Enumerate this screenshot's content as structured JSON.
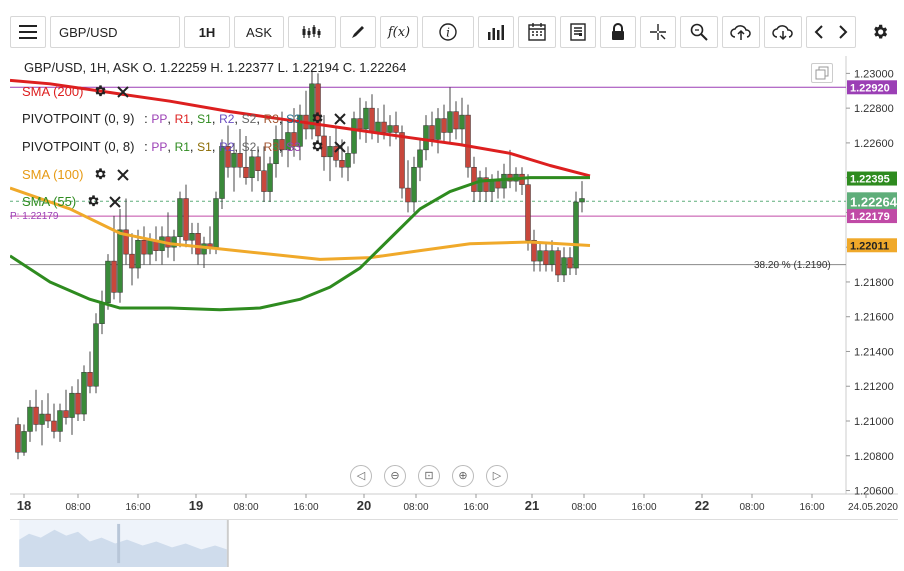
{
  "toolbar": {
    "symbol": "GBP/USD",
    "timeframe": "1H",
    "price_type": "ASK"
  },
  "header": {
    "ohlc": "GBP/USD, 1H, ASK   O. 1.22259 H. 1.22377 L. 1.22194 C. 1.22264"
  },
  "legends": {
    "sma200": "SMA (200)",
    "pivot1_name": "PIVOTPOINT (0, 9)",
    "pivot1_levels": [
      "PP",
      "R1",
      "S1",
      "R2",
      "S2",
      "R3",
      "S3"
    ],
    "pivot2_name": "PIVOTPOINT (0, 8)",
    "pivot2_levels": [
      "PP",
      "R1",
      "S1",
      "R2",
      "S2",
      "R3",
      "S3"
    ],
    "sma100": "SMA (100)",
    "sma55": "SMA (55)",
    "pivot_tag": "P: 1.22179"
  },
  "fib_label": "38.20 % (1.2190)",
  "price_badges": {
    "p1": "1.22920",
    "p2": "1.22395",
    "p3": "1.22264",
    "p4": "1.22179",
    "p5": "1.22011"
  },
  "colors": {
    "sma200": "#dd1f1f",
    "sma100": "#f0a92a",
    "sma55": "#2e8b1f",
    "pivot": "#9b3fb5",
    "up": "#3a8a3a",
    "down": "#c8473c"
  },
  "chart_data": {
    "type": "line",
    "y_ticks": [
      "1.23000",
      "1.22800",
      "1.22600",
      "1.22400",
      "1.22200",
      "1.22000",
      "1.21800",
      "1.21600",
      "1.21400",
      "1.21200",
      "1.21000",
      "1.20800",
      "1.20600"
    ],
    "x_labels": [
      "18",
      "08:00",
      "16:00",
      "19",
      "08:00",
      "16:00",
      "20",
      "08:00",
      "16:00",
      "21",
      "08:00",
      "16:00",
      "22",
      "08:00",
      "16:00",
      "24.05.2020"
    ],
    "ylim": [
      1.2058,
      1.231
    ],
    "series": [
      {
        "name": "SMA (200)",
        "values": [
          [
            0,
            1.2296
          ],
          [
            40,
            1.2294
          ],
          [
            100,
            1.2289
          ],
          [
            160,
            1.2284
          ],
          [
            220,
            1.2278
          ],
          [
            280,
            1.2273
          ],
          [
            340,
            1.2268
          ],
          [
            400,
            1.2263
          ],
          [
            450,
            1.2259
          ],
          [
            500,
            1.2254
          ],
          [
            540,
            1.2247
          ],
          [
            580,
            1.2241
          ]
        ]
      },
      {
        "name": "SMA (100)",
        "values": [
          [
            0,
            1.2234
          ],
          [
            60,
            1.2222
          ],
          [
            110,
            1.2208
          ],
          [
            160,
            1.2202
          ],
          [
            210,
            1.2199
          ],
          [
            260,
            1.2196
          ],
          [
            310,
            1.2193
          ],
          [
            360,
            1.2194
          ],
          [
            410,
            1.2198
          ],
          [
            460,
            1.2202
          ],
          [
            520,
            1.2203
          ],
          [
            580,
            1.2201
          ]
        ]
      },
      {
        "name": "SMA (55)",
        "values": [
          [
            0,
            1.2195
          ],
          [
            40,
            1.218
          ],
          [
            80,
            1.217
          ],
          [
            110,
            1.2165
          ],
          [
            160,
            1.2165
          ],
          [
            210,
            1.2164
          ],
          [
            250,
            1.2165
          ],
          [
            290,
            1.217
          ],
          [
            320,
            1.2177
          ],
          [
            350,
            1.2188
          ],
          [
            380,
            1.2205
          ],
          [
            410,
            1.2222
          ],
          [
            440,
            1.2232
          ],
          [
            470,
            1.2238
          ],
          [
            520,
            1.224
          ],
          [
            580,
            1.224
          ]
        ]
      }
    ],
    "horizontal_levels": [
      {
        "name": "pivot",
        "value": 1.2292
      },
      {
        "name": "pivot_p",
        "value": 1.22179
      },
      {
        "name": "fib",
        "value": 1.219
      },
      {
        "name": "last",
        "value": 1.22264
      }
    ],
    "candles": [
      {
        "t": 8,
        "o": 1.2098,
        "h": 1.2102,
        "l": 1.2078,
        "c": 1.2082
      },
      {
        "t": 14,
        "o": 1.2082,
        "h": 1.2098,
        "l": 1.208,
        "c": 1.2094
      },
      {
        "t": 20,
        "o": 1.2094,
        "h": 1.2112,
        "l": 1.2088,
        "c": 1.2108
      },
      {
        "t": 26,
        "o": 1.2108,
        "h": 1.2118,
        "l": 1.2094,
        "c": 1.2098
      },
      {
        "t": 32,
        "o": 1.2098,
        "h": 1.2112,
        "l": 1.2086,
        "c": 1.2104
      },
      {
        "t": 38,
        "o": 1.2104,
        "h": 1.2116,
        "l": 1.2096,
        "c": 1.21
      },
      {
        "t": 44,
        "o": 1.21,
        "h": 1.211,
        "l": 1.209,
        "c": 1.2094
      },
      {
        "t": 50,
        "o": 1.2094,
        "h": 1.211,
        "l": 1.2088,
        "c": 1.2106
      },
      {
        "t": 56,
        "o": 1.2106,
        "h": 1.2118,
        "l": 1.2098,
        "c": 1.2102
      },
      {
        "t": 62,
        "o": 1.2102,
        "h": 1.212,
        "l": 1.2092,
        "c": 1.2116
      },
      {
        "t": 68,
        "o": 1.2116,
        "h": 1.2124,
        "l": 1.21,
        "c": 1.2104
      },
      {
        "t": 74,
        "o": 1.2104,
        "h": 1.2132,
        "l": 1.21,
        "c": 1.2128
      },
      {
        "t": 80,
        "o": 1.2128,
        "h": 1.214,
        "l": 1.2116,
        "c": 1.212
      },
      {
        "t": 86,
        "o": 1.212,
        "h": 1.2162,
        "l": 1.2116,
        "c": 1.2156
      },
      {
        "t": 92,
        "o": 1.2156,
        "h": 1.2175,
        "l": 1.215,
        "c": 1.2168
      },
      {
        "t": 98,
        "o": 1.2168,
        "h": 1.2196,
        "l": 1.2164,
        "c": 1.2192
      },
      {
        "t": 104,
        "o": 1.2192,
        "h": 1.2218,
        "l": 1.217,
        "c": 1.2174
      },
      {
        "t": 110,
        "o": 1.2174,
        "h": 1.2222,
        "l": 1.2168,
        "c": 1.221
      },
      {
        "t": 116,
        "o": 1.221,
        "h": 1.2228,
        "l": 1.219,
        "c": 1.2196
      },
      {
        "t": 122,
        "o": 1.2196,
        "h": 1.2208,
        "l": 1.2178,
        "c": 1.2188
      },
      {
        "t": 128,
        "o": 1.2188,
        "h": 1.221,
        "l": 1.2182,
        "c": 1.2204
      },
      {
        "t": 134,
        "o": 1.2204,
        "h": 1.2212,
        "l": 1.219,
        "c": 1.2196
      },
      {
        "t": 140,
        "o": 1.2196,
        "h": 1.2208,
        "l": 1.219,
        "c": 1.2204
      },
      {
        "t": 146,
        "o": 1.2204,
        "h": 1.2212,
        "l": 1.2192,
        "c": 1.2198
      },
      {
        "t": 152,
        "o": 1.2198,
        "h": 1.2212,
        "l": 1.219,
        "c": 1.2206
      },
      {
        "t": 158,
        "o": 1.2206,
        "h": 1.222,
        "l": 1.2194,
        "c": 1.22
      },
      {
        "t": 164,
        "o": 1.22,
        "h": 1.221,
        "l": 1.2192,
        "c": 1.2206
      },
      {
        "t": 170,
        "o": 1.2206,
        "h": 1.2232,
        "l": 1.22,
        "c": 1.2228
      },
      {
        "t": 176,
        "o": 1.2228,
        "h": 1.2236,
        "l": 1.22,
        "c": 1.2204
      },
      {
        "t": 182,
        "o": 1.2204,
        "h": 1.2214,
        "l": 1.2196,
        "c": 1.2208
      },
      {
        "t": 188,
        "o": 1.2208,
        "h": 1.2214,
        "l": 1.219,
        "c": 1.2196
      },
      {
        "t": 194,
        "o": 1.2196,
        "h": 1.2206,
        "l": 1.2188,
        "c": 1.2202
      },
      {
        "t": 200,
        "o": 1.2202,
        "h": 1.2212,
        "l": 1.2196,
        "c": 1.22
      },
      {
        "t": 206,
        "o": 1.22,
        "h": 1.2232,
        "l": 1.2196,
        "c": 1.2228
      },
      {
        "t": 212,
        "o": 1.2228,
        "h": 1.2262,
        "l": 1.2222,
        "c": 1.2258
      },
      {
        "t": 218,
        "o": 1.2258,
        "h": 1.227,
        "l": 1.224,
        "c": 1.2246
      },
      {
        "t": 224,
        "o": 1.2246,
        "h": 1.226,
        "l": 1.2232,
        "c": 1.2254
      },
      {
        "t": 230,
        "o": 1.2254,
        "h": 1.2268,
        "l": 1.224,
        "c": 1.2246
      },
      {
        "t": 236,
        "o": 1.2246,
        "h": 1.2264,
        "l": 1.2236,
        "c": 1.224
      },
      {
        "t": 242,
        "o": 1.224,
        "h": 1.2256,
        "l": 1.2232,
        "c": 1.2252
      },
      {
        "t": 248,
        "o": 1.2252,
        "h": 1.2258,
        "l": 1.2238,
        "c": 1.2244
      },
      {
        "t": 254,
        "o": 1.2244,
        "h": 1.2258,
        "l": 1.2226,
        "c": 1.2232
      },
      {
        "t": 260,
        "o": 1.2232,
        "h": 1.2252,
        "l": 1.2226,
        "c": 1.2248
      },
      {
        "t": 266,
        "o": 1.2248,
        "h": 1.227,
        "l": 1.224,
        "c": 1.2262
      },
      {
        "t": 272,
        "o": 1.2262,
        "h": 1.2278,
        "l": 1.2252,
        "c": 1.2256
      },
      {
        "t": 278,
        "o": 1.2256,
        "h": 1.2274,
        "l": 1.2246,
        "c": 1.2266
      },
      {
        "t": 284,
        "o": 1.2266,
        "h": 1.228,
        "l": 1.2252,
        "c": 1.2258
      },
      {
        "t": 290,
        "o": 1.2258,
        "h": 1.2282,
        "l": 1.225,
        "c": 1.2276
      },
      {
        "t": 296,
        "o": 1.2276,
        "h": 1.229,
        "l": 1.2262,
        "c": 1.2268
      },
      {
        "t": 302,
        "o": 1.2268,
        "h": 1.2302,
        "l": 1.2262,
        "c": 1.2294
      },
      {
        "t": 308,
        "o": 1.2294,
        "h": 1.23,
        "l": 1.226,
        "c": 1.2264
      },
      {
        "t": 314,
        "o": 1.2264,
        "h": 1.2276,
        "l": 1.2244,
        "c": 1.2252
      },
      {
        "t": 320,
        "o": 1.2252,
        "h": 1.2264,
        "l": 1.2238,
        "c": 1.2258
      },
      {
        "t": 326,
        "o": 1.2258,
        "h": 1.227,
        "l": 1.2246,
        "c": 1.225
      },
      {
        "t": 332,
        "o": 1.225,
        "h": 1.2262,
        "l": 1.224,
        "c": 1.2246
      },
      {
        "t": 338,
        "o": 1.2246,
        "h": 1.2258,
        "l": 1.2238,
        "c": 1.2254
      },
      {
        "t": 344,
        "o": 1.2254,
        "h": 1.2278,
        "l": 1.2248,
        "c": 1.2274
      },
      {
        "t": 350,
        "o": 1.2274,
        "h": 1.2286,
        "l": 1.2262,
        "c": 1.2268
      },
      {
        "t": 356,
        "o": 1.2268,
        "h": 1.2284,
        "l": 1.226,
        "c": 1.228
      },
      {
        "t": 362,
        "o": 1.228,
        "h": 1.2288,
        "l": 1.2262,
        "c": 1.2266
      },
      {
        "t": 368,
        "o": 1.2266,
        "h": 1.228,
        "l": 1.226,
        "c": 1.2272
      },
      {
        "t": 374,
        "o": 1.2272,
        "h": 1.2282,
        "l": 1.2262,
        "c": 1.2266
      },
      {
        "t": 380,
        "o": 1.2266,
        "h": 1.2276,
        "l": 1.2258,
        "c": 1.227
      },
      {
        "t": 386,
        "o": 1.227,
        "h": 1.2278,
        "l": 1.2262,
        "c": 1.2266
      },
      {
        "t": 392,
        "o": 1.2266,
        "h": 1.227,
        "l": 1.2228,
        "c": 1.2234
      },
      {
        "t": 398,
        "o": 1.2234,
        "h": 1.225,
        "l": 1.222,
        "c": 1.2226
      },
      {
        "t": 404,
        "o": 1.2226,
        "h": 1.2252,
        "l": 1.222,
        "c": 1.2246
      },
      {
        "t": 410,
        "o": 1.2246,
        "h": 1.2262,
        "l": 1.2238,
        "c": 1.2256
      },
      {
        "t": 416,
        "o": 1.2256,
        "h": 1.2276,
        "l": 1.225,
        "c": 1.227
      },
      {
        "t": 422,
        "o": 1.227,
        "h": 1.2278,
        "l": 1.2258,
        "c": 1.2262
      },
      {
        "t": 428,
        "o": 1.2262,
        "h": 1.228,
        "l": 1.2254,
        "c": 1.2274
      },
      {
        "t": 434,
        "o": 1.2274,
        "h": 1.2282,
        "l": 1.226,
        "c": 1.2266
      },
      {
        "t": 440,
        "o": 1.2266,
        "h": 1.2292,
        "l": 1.226,
        "c": 1.2278
      },
      {
        "t": 446,
        "o": 1.2278,
        "h": 1.2284,
        "l": 1.2262,
        "c": 1.2268
      },
      {
        "t": 452,
        "o": 1.2268,
        "h": 1.2286,
        "l": 1.2258,
        "c": 1.2276
      },
      {
        "t": 458,
        "o": 1.2276,
        "h": 1.2282,
        "l": 1.224,
        "c": 1.2246
      },
      {
        "t": 464,
        "o": 1.2246,
        "h": 1.2252,
        "l": 1.2226,
        "c": 1.2232
      },
      {
        "t": 470,
        "o": 1.2232,
        "h": 1.2244,
        "l": 1.2226,
        "c": 1.224
      },
      {
        "t": 476,
        "o": 1.224,
        "h": 1.2246,
        "l": 1.2226,
        "c": 1.2232
      },
      {
        "t": 482,
        "o": 1.2232,
        "h": 1.2242,
        "l": 1.2226,
        "c": 1.2238
      },
      {
        "t": 488,
        "o": 1.2238,
        "h": 1.2244,
        "l": 1.2228,
        "c": 1.2234
      },
      {
        "t": 494,
        "o": 1.2234,
        "h": 1.2248,
        "l": 1.2228,
        "c": 1.2242
      },
      {
        "t": 500,
        "o": 1.2242,
        "h": 1.2256,
        "l": 1.2234,
        "c": 1.2238
      },
      {
        "t": 506,
        "o": 1.2238,
        "h": 1.2246,
        "l": 1.2232,
        "c": 1.2242
      },
      {
        "t": 512,
        "o": 1.2242,
        "h": 1.2246,
        "l": 1.223,
        "c": 1.2236
      },
      {
        "t": 518,
        "o": 1.2236,
        "h": 1.2242,
        "l": 1.2198,
        "c": 1.2204
      },
      {
        "t": 524,
        "o": 1.2204,
        "h": 1.221,
        "l": 1.2186,
        "c": 1.2192
      },
      {
        "t": 530,
        "o": 1.2192,
        "h": 1.2202,
        "l": 1.2186,
        "c": 1.2198
      },
      {
        "t": 536,
        "o": 1.2198,
        "h": 1.2202,
        "l": 1.2186,
        "c": 1.219
      },
      {
        "t": 542,
        "o": 1.219,
        "h": 1.2204,
        "l": 1.2186,
        "c": 1.2198
      },
      {
        "t": 548,
        "o": 1.2198,
        "h": 1.22,
        "l": 1.218,
        "c": 1.2184
      },
      {
        "t": 554,
        "o": 1.2184,
        "h": 1.22,
        "l": 1.218,
        "c": 1.2194
      },
      {
        "t": 560,
        "o": 1.2194,
        "h": 1.22,
        "l": 1.2184,
        "c": 1.2188
      },
      {
        "t": 566,
        "o": 1.2188,
        "h": 1.2232,
        "l": 1.2184,
        "c": 1.2226
      },
      {
        "t": 572,
        "o": 1.2226,
        "h": 1.2238,
        "l": 1.222,
        "c": 1.2228
      }
    ]
  }
}
